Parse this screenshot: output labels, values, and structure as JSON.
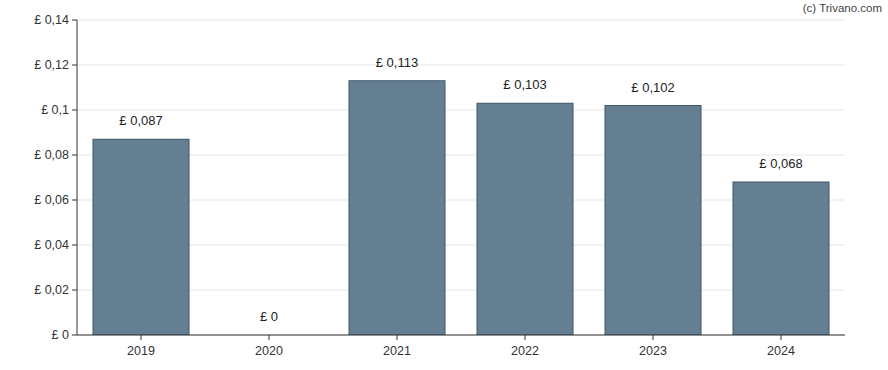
{
  "chart_data": {
    "type": "bar",
    "annotation": "(c) Trivano.com",
    "categories": [
      "2019",
      "2020",
      "2021",
      "2022",
      "2023",
      "2024"
    ],
    "values": [
      0.087,
      0,
      0.113,
      0.103,
      0.102,
      0.068
    ],
    "value_labels": [
      "£ 0,087",
      "£ 0",
      "£ 0,113",
      "£ 0,103",
      "£ 0,102",
      "£ 0,068"
    ],
    "data_labels": true,
    "color": "#647f92",
    "ylim": [
      0,
      0.14
    ],
    "yticks": [
      {
        "value": 0,
        "label": "£ 0"
      },
      {
        "value": 0.02,
        "label": "£ 0,02"
      },
      {
        "value": 0.04,
        "label": "£ 0,04"
      },
      {
        "value": 0.06,
        "label": "£ 0,06"
      },
      {
        "value": 0.08,
        "label": "£ 0,08"
      },
      {
        "value": 0.1,
        "label": "£ 0,1"
      },
      {
        "value": 0.12,
        "label": "£ 0,12"
      },
      {
        "value": 0.14,
        "label": "£ 0,14"
      }
    ],
    "grid": true
  }
}
